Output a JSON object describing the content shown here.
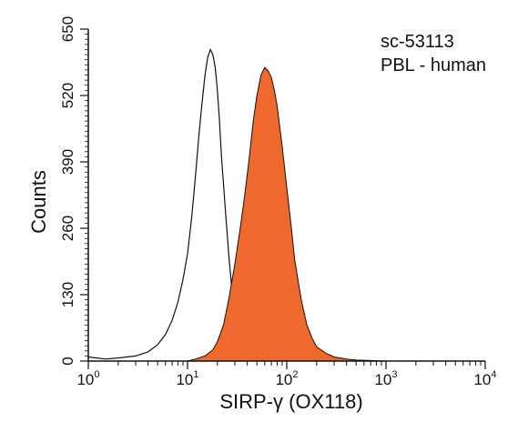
{
  "chart_data": {
    "type": "area",
    "title": "",
    "annotations": [
      "sc-53113",
      "PBL - human"
    ],
    "xlabel": "SIRP-γ (OX118)",
    "ylabel": "Counts",
    "xscale": "log",
    "xlim": [
      1,
      10000
    ],
    "ylim": [
      0,
      650
    ],
    "x_ticks": [
      {
        "base": "10",
        "exp": "0"
      },
      {
        "base": "10",
        "exp": "1"
      },
      {
        "base": "10",
        "exp": "2"
      },
      {
        "base": "10",
        "exp": "3"
      },
      {
        "base": "10",
        "exp": "4"
      }
    ],
    "y_ticks": [
      "0",
      "130",
      "260",
      "390",
      "520",
      "650"
    ],
    "grid": false,
    "legend": "none",
    "series": [
      {
        "style": "outline",
        "color": "#111111",
        "x": [
          1,
          1.5,
          2,
          3,
          4,
          5,
          6,
          7,
          8,
          9,
          10,
          11,
          12,
          13,
          14,
          15,
          16,
          17,
          18,
          19,
          20,
          21,
          22,
          24,
          26,
          28,
          30,
          33,
          36,
          40,
          45,
          50,
          60,
          70,
          80,
          100
        ],
        "y": [
          8,
          4,
          6,
          10,
          18,
          32,
          52,
          80,
          115,
          160,
          210,
          280,
          360,
          440,
          505,
          560,
          595,
          610,
          600,
          575,
          530,
          470,
          400,
          300,
          210,
          140,
          90,
          55,
          32,
          18,
          10,
          6,
          3,
          2,
          1,
          0
        ]
      },
      {
        "style": "filled",
        "color": "#ee6a2c",
        "x": [
          10,
          12,
          15,
          18,
          20,
          23,
          26,
          30,
          34,
          38,
          42,
          46,
          50,
          55,
          60,
          65,
          70,
          75,
          80,
          90,
          100,
          110,
          120,
          140,
          160,
          180,
          200,
          250,
          300,
          400,
          500,
          700,
          1000
        ],
        "y": [
          0,
          4,
          10,
          22,
          38,
          70,
          120,
          190,
          260,
          330,
          400,
          470,
          520,
          560,
          575,
          568,
          555,
          530,
          500,
          420,
          340,
          270,
          200,
          120,
          70,
          45,
          28,
          15,
          8,
          4,
          2,
          1,
          0
        ]
      }
    ]
  }
}
